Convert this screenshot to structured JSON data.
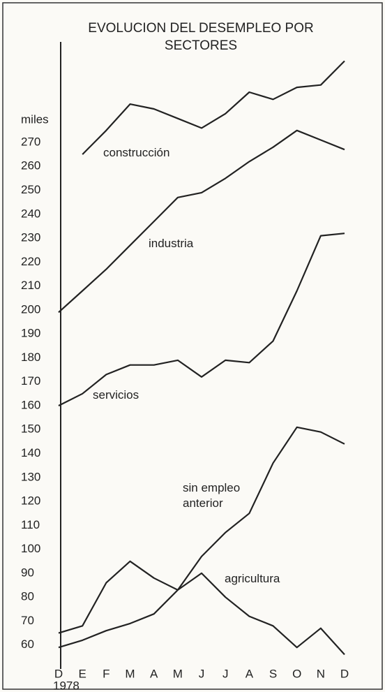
{
  "chart_data": {
    "type": "line",
    "title": "EVOLUCION DEL DESEMPLEO POR SECTORES",
    "y_label": "miles",
    "x_note": "1978",
    "categories": [
      "D",
      "E",
      "F",
      "M",
      "A",
      "M",
      "J",
      "J",
      "A",
      "S",
      "O",
      "N",
      "D"
    ],
    "series": [
      {
        "name": "construcción",
        "color": "#222222",
        "values": [
          null,
          265,
          275,
          286,
          284,
          280,
          276,
          282,
          291,
          288,
          293,
          294,
          304
        ]
      },
      {
        "name": "industria",
        "color": "#222222",
        "values": [
          199,
          208,
          217,
          227,
          237,
          247,
          249,
          255,
          262,
          268,
          275,
          271,
          267
        ]
      },
      {
        "name": "servicios",
        "color": "#222222",
        "values": [
          160,
          165,
          173,
          177,
          177,
          179,
          172,
          179,
          178,
          187,
          208,
          231,
          232
        ]
      },
      {
        "name": "sin empleo anterior",
        "color": "#222222",
        "values": [
          59,
          62,
          66,
          69,
          73,
          83,
          97,
          107,
          115,
          136,
          151,
          149,
          144
        ]
      },
      {
        "name": "agricultura",
        "color": "#222222",
        "values": [
          65,
          68,
          86,
          95,
          88,
          83,
          90,
          80,
          72,
          68,
          59,
          67,
          56
        ]
      }
    ],
    "ylim": [
      50,
      312
    ],
    "yticks": [
      60,
      70,
      80,
      90,
      100,
      110,
      120,
      130,
      140,
      150,
      160,
      170,
      180,
      190,
      200,
      210,
      220,
      230,
      240,
      250,
      260,
      270
    ],
    "grid": false
  }
}
